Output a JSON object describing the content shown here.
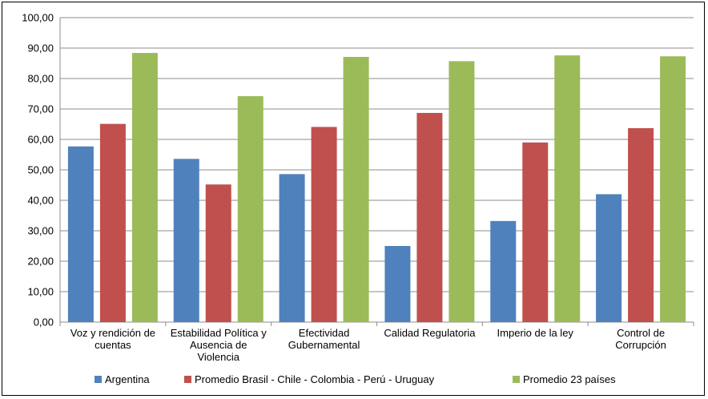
{
  "chart_data": {
    "type": "bar",
    "categories": [
      [
        "Voz y rendición de",
        "cuentas"
      ],
      [
        "Estabilidad Política y",
        "Ausencia de",
        "Violencia"
      ],
      [
        "Efectividad",
        "Gubernamental"
      ],
      [
        "Calidad Regulatoria"
      ],
      [
        "Imperio de la ley"
      ],
      [
        "Control de",
        "Corrupción"
      ]
    ],
    "series": [
      {
        "name": "Argentina",
        "color": "#4f81bd",
        "values": [
          57.7,
          53.6,
          48.6,
          25.0,
          33.2,
          42.0
        ]
      },
      {
        "name": "Promedio Brasil - Chile - Colombia - Perú - Uruguay",
        "color": "#c0504d",
        "values": [
          65.1,
          45.2,
          64.1,
          68.7,
          59.0,
          63.7
        ]
      },
      {
        "name": "Promedio 23 países",
        "color": "#9bbb59",
        "values": [
          88.4,
          74.2,
          87.1,
          85.7,
          87.6,
          87.3
        ]
      }
    ],
    "ylim": [
      0,
      100
    ],
    "yticks": [
      "0,00",
      "10,00",
      "20,00",
      "30,00",
      "40,00",
      "50,00",
      "60,00",
      "70,00",
      "80,00",
      "90,00",
      "100,00"
    ],
    "grid": true,
    "legend_position": "bottom"
  }
}
